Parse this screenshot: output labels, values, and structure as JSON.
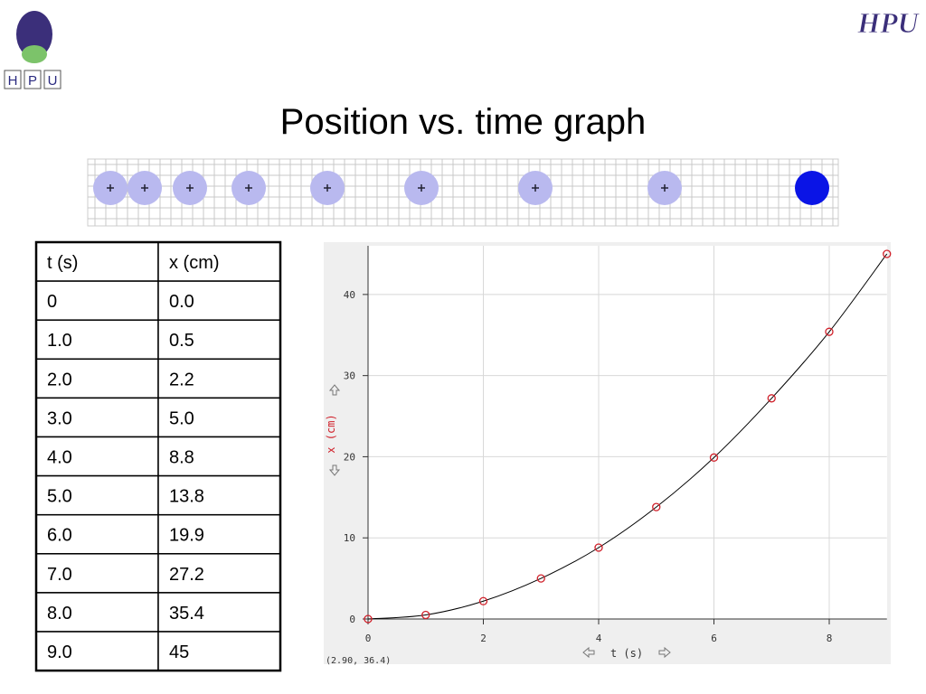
{
  "title": "Position vs. time graph",
  "logos": {
    "left": [
      "H",
      "P",
      "U"
    ],
    "right": "HPU"
  },
  "table": {
    "header": [
      "t (s)",
      "x (cm)"
    ],
    "rows": [
      [
        "0",
        "0.0"
      ],
      [
        "1.0",
        "0.5"
      ],
      [
        "2.0",
        "2.2"
      ],
      [
        "3.0",
        "5.0"
      ],
      [
        "4.0",
        "8.8"
      ],
      [
        "5.0",
        "13.8"
      ],
      [
        "6.0",
        "19.9"
      ],
      [
        "7.0",
        "27.2"
      ],
      [
        "8.0",
        "35.4"
      ],
      [
        "9.0",
        "45"
      ]
    ]
  },
  "chart_data": {
    "type": "scatter",
    "connect": true,
    "x": [
      0,
      1,
      2,
      3,
      4,
      5,
      6,
      7,
      8,
      9
    ],
    "values": [
      0.0,
      0.5,
      2.2,
      5.0,
      8.8,
      13.8,
      19.9,
      27.2,
      35.4,
      45
    ],
    "color": "#d0202a",
    "line_color": "#000000",
    "xlabel": "t (s)",
    "ylabel": "x (cm)",
    "xlim": [
      0,
      9
    ],
    "ylim": [
      0,
      46
    ],
    "xticks": [
      0,
      2,
      4,
      6,
      8
    ],
    "yticks": [
      0,
      10,
      20,
      30,
      40
    ],
    "grid": true,
    "readout": "(2.90, 36.4)"
  }
}
